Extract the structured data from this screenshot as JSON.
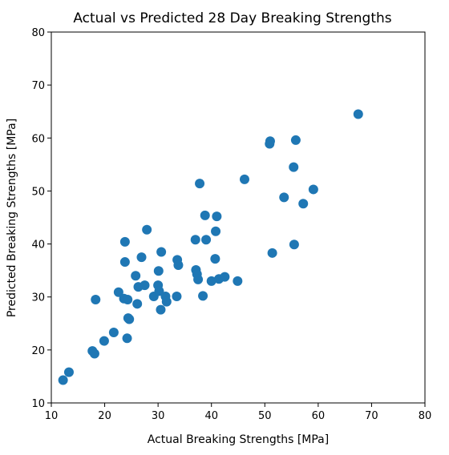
{
  "chart_data": {
    "type": "scatter",
    "title": "Actual vs Predicted 28 Day Breaking Strengths",
    "xlabel": "Actual Breaking Strengths [MPa]",
    "ylabel": "Predicted Breaking Strengths [MPa]",
    "xlim": [
      10,
      80
    ],
    "ylim": [
      10,
      80
    ],
    "xticks": [
      "10",
      "20",
      "30",
      "40",
      "50",
      "60",
      "70",
      "80"
    ],
    "yticks": [
      "10",
      "20",
      "30",
      "40",
      "50",
      "60",
      "70",
      "80"
    ],
    "grid": false,
    "marker_color": "#1f77b4",
    "points": [
      {
        "x": 12.2,
        "y": 14.3
      },
      {
        "x": 13.3,
        "y": 15.8
      },
      {
        "x": 17.7,
        "y": 19.8
      },
      {
        "x": 18.1,
        "y": 19.3
      },
      {
        "x": 18.3,
        "y": 29.5
      },
      {
        "x": 19.9,
        "y": 21.7
      },
      {
        "x": 21.7,
        "y": 23.3
      },
      {
        "x": 22.6,
        "y": 30.9
      },
      {
        "x": 23.6,
        "y": 29.7
      },
      {
        "x": 23.8,
        "y": 40.4
      },
      {
        "x": 23.8,
        "y": 36.6
      },
      {
        "x": 24.2,
        "y": 22.2
      },
      {
        "x": 24.3,
        "y": 29.5
      },
      {
        "x": 24.4,
        "y": 26.0
      },
      {
        "x": 24.6,
        "y": 25.8
      },
      {
        "x": 25.8,
        "y": 34.0
      },
      {
        "x": 26.1,
        "y": 28.7
      },
      {
        "x": 26.3,
        "y": 31.9
      },
      {
        "x": 26.9,
        "y": 37.5
      },
      {
        "x": 27.5,
        "y": 32.2
      },
      {
        "x": 27.9,
        "y": 42.7
      },
      {
        "x": 29.2,
        "y": 30.1
      },
      {
        "x": 30.0,
        "y": 32.2
      },
      {
        "x": 30.1,
        "y": 34.9
      },
      {
        "x": 30.2,
        "y": 31.1
      },
      {
        "x": 30.5,
        "y": 27.6
      },
      {
        "x": 30.6,
        "y": 38.5
      },
      {
        "x": 31.4,
        "y": 30.1
      },
      {
        "x": 31.6,
        "y": 29.1
      },
      {
        "x": 33.5,
        "y": 30.1
      },
      {
        "x": 33.6,
        "y": 37.0
      },
      {
        "x": 33.8,
        "y": 36.0
      },
      {
        "x": 37.0,
        "y": 40.8
      },
      {
        "x": 37.1,
        "y": 35.1
      },
      {
        "x": 37.3,
        "y": 34.3
      },
      {
        "x": 37.5,
        "y": 33.3
      },
      {
        "x": 37.8,
        "y": 51.4
      },
      {
        "x": 38.4,
        "y": 30.2
      },
      {
        "x": 38.8,
        "y": 45.4
      },
      {
        "x": 39.0,
        "y": 40.8
      },
      {
        "x": 40.0,
        "y": 33.0
      },
      {
        "x": 40.7,
        "y": 37.2
      },
      {
        "x": 40.8,
        "y": 42.4
      },
      {
        "x": 41.0,
        "y": 45.2
      },
      {
        "x": 41.4,
        "y": 33.4
      },
      {
        "x": 42.5,
        "y": 33.8
      },
      {
        "x": 44.9,
        "y": 33.0
      },
      {
        "x": 46.2,
        "y": 52.2
      },
      {
        "x": 50.9,
        "y": 58.9
      },
      {
        "x": 51.0,
        "y": 59.4
      },
      {
        "x": 51.4,
        "y": 38.3
      },
      {
        "x": 53.6,
        "y": 48.8
      },
      {
        "x": 55.4,
        "y": 54.5
      },
      {
        "x": 55.5,
        "y": 39.9
      },
      {
        "x": 55.8,
        "y": 59.6
      },
      {
        "x": 57.2,
        "y": 47.6
      },
      {
        "x": 59.1,
        "y": 50.3
      },
      {
        "x": 67.5,
        "y": 64.5
      }
    ]
  }
}
